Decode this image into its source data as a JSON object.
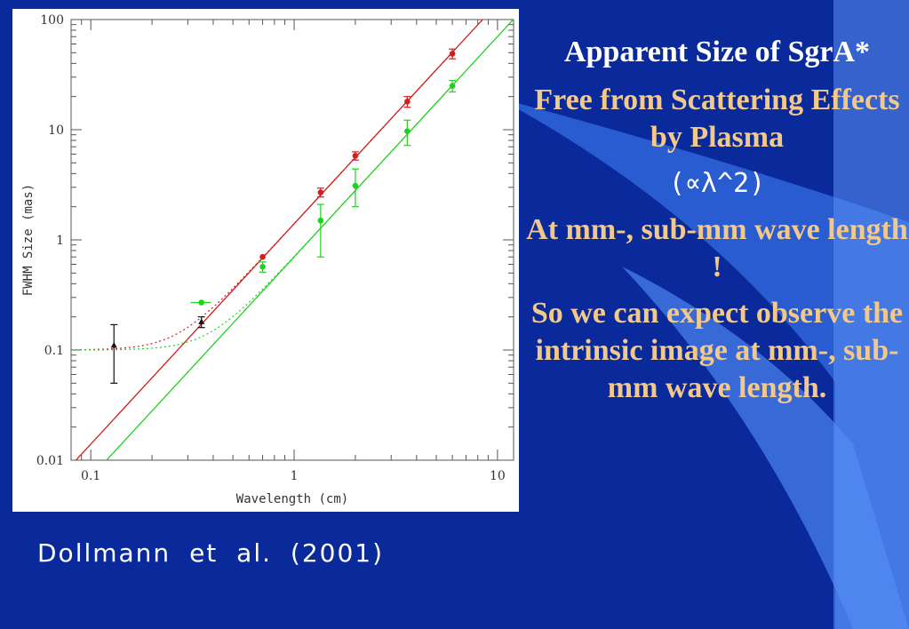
{
  "slide": {
    "title": "Apparent Size of SgrA*",
    "point1": "Free from Scattering Effects by Plasma",
    "formula": "(∝λ^2)",
    "point2": "At mm-, sub-mm wave length !",
    "point3": "So we can expect observe the intrinsic image at mm-, sub-mm wave length.",
    "citation": "Dollmann et al. (2001)"
  },
  "colors": {
    "background": "#0a2a9c",
    "accent": "#3a78e8",
    "red_series": "#d11f1f",
    "green_series": "#1ed21e",
    "black_series": "#111111"
  },
  "chart_data": {
    "type": "scatter",
    "xlabel": "Wavelength (cm)",
    "ylabel": "FWHM Size (mas)",
    "xscale": "log",
    "yscale": "log",
    "xlim": [
      0.08,
      12
    ],
    "ylim": [
      0.01,
      100
    ],
    "x_ticks": [
      "0.1",
      "1",
      "10"
    ],
    "y_ticks": [
      "0.01",
      "0.1",
      "1",
      "10",
      "100"
    ],
    "series": [
      {
        "color": "#d11f1f",
        "points": [
          {
            "x": 0.7,
            "y": 0.7
          },
          {
            "x": 1.35,
            "y": 2.7,
            "err": [
              0.25,
              0.25
            ]
          },
          {
            "x": 2.0,
            "y": 5.8,
            "err": [
              0.5,
              0.5
            ]
          },
          {
            "x": 3.6,
            "y": 18,
            "err": [
              2,
              2
            ]
          },
          {
            "x": 6.0,
            "y": 49,
            "err": [
              5,
              5
            ]
          }
        ],
        "fit_line": {
          "coef": 1.4,
          "power": 2
        },
        "dotted_curve": {
          "coef": 1.4,
          "power": 2,
          "floor": 0.1
        }
      },
      {
        "color": "#1ed21e",
        "points": [
          {
            "x": 0.35,
            "y": 0.27,
            "xerr": [
              0.04,
              0.04
            ]
          },
          {
            "x": 0.7,
            "y": 0.57,
            "err": [
              0.06,
              0.06
            ]
          },
          {
            "x": 1.35,
            "y": 1.5,
            "err": [
              0.8,
              0.6
            ]
          },
          {
            "x": 2.0,
            "y": 3.1,
            "err": [
              1.1,
              1.3
            ]
          },
          {
            "x": 3.6,
            "y": 9.7,
            "err": [
              2.5,
              2.5
            ]
          },
          {
            "x": 6.0,
            "y": 25,
            "err": [
              3,
              3
            ]
          }
        ],
        "fit_line": {
          "coef": 0.7,
          "power": 2
        },
        "dotted_curve": {
          "coef": 0.7,
          "power": 2,
          "floor": 0.1
        }
      },
      {
        "color": "#111111",
        "marker": "triangle",
        "points": [
          {
            "x": 0.13,
            "y": 0.11,
            "err": [
              0.06,
              0.06
            ]
          },
          {
            "x": 0.35,
            "y": 0.18,
            "err": [
              0.02,
              0.02
            ]
          }
        ]
      }
    ]
  }
}
